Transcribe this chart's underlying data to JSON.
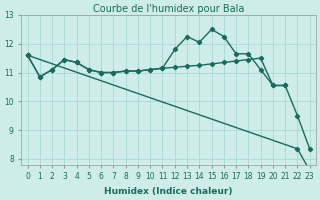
{
  "title": "Courbe de l'humidex pour Bala",
  "xlabel": "Humidex (Indice chaleur)",
  "x": [
    0,
    1,
    2,
    3,
    4,
    5,
    6,
    7,
    8,
    9,
    10,
    11,
    12,
    13,
    14,
    15,
    16,
    17,
    18,
    19,
    20,
    21,
    22,
    23
  ],
  "line1": [
    11.6,
    10.85,
    11.1,
    11.45,
    11.35,
    11.1,
    11.0,
    11.0,
    11.05,
    11.05,
    11.1,
    11.15,
    11.8,
    12.25,
    12.05,
    12.5,
    12.25,
    11.65,
    11.65,
    11.1,
    10.55,
    10.55,
    9.5,
    8.35
  ],
  "line2": [
    11.6,
    10.85,
    11.1,
    11.45,
    11.35,
    11.1,
    11.0,
    11.0,
    11.05,
    11.05,
    11.1,
    11.15,
    11.18,
    11.22,
    11.25,
    11.3,
    11.35,
    11.4,
    11.45,
    11.5,
    10.55,
    10.55,
    null,
    null
  ],
  "line3": [
    11.6,
    null,
    null,
    null,
    null,
    null,
    null,
    null,
    null,
    null,
    null,
    null,
    null,
    null,
    null,
    null,
    null,
    null,
    null,
    null,
    null,
    null,
    8.35,
    7.6
  ],
  "line_color": "#1a6b5a",
  "bg_color": "#ceecea",
  "grid_color": "#aad8d4",
  "ylim_min": 7.8,
  "ylim_max": 13.0,
  "yticks": [
    8,
    9,
    10,
    11,
    12
  ],
  "ytick_top": 13,
  "marker": "D",
  "marker_size": 2.2,
  "line_width": 1.0,
  "title_fontsize": 7.0,
  "xlabel_fontsize": 6.5,
  "tick_fontsize": 5.5
}
